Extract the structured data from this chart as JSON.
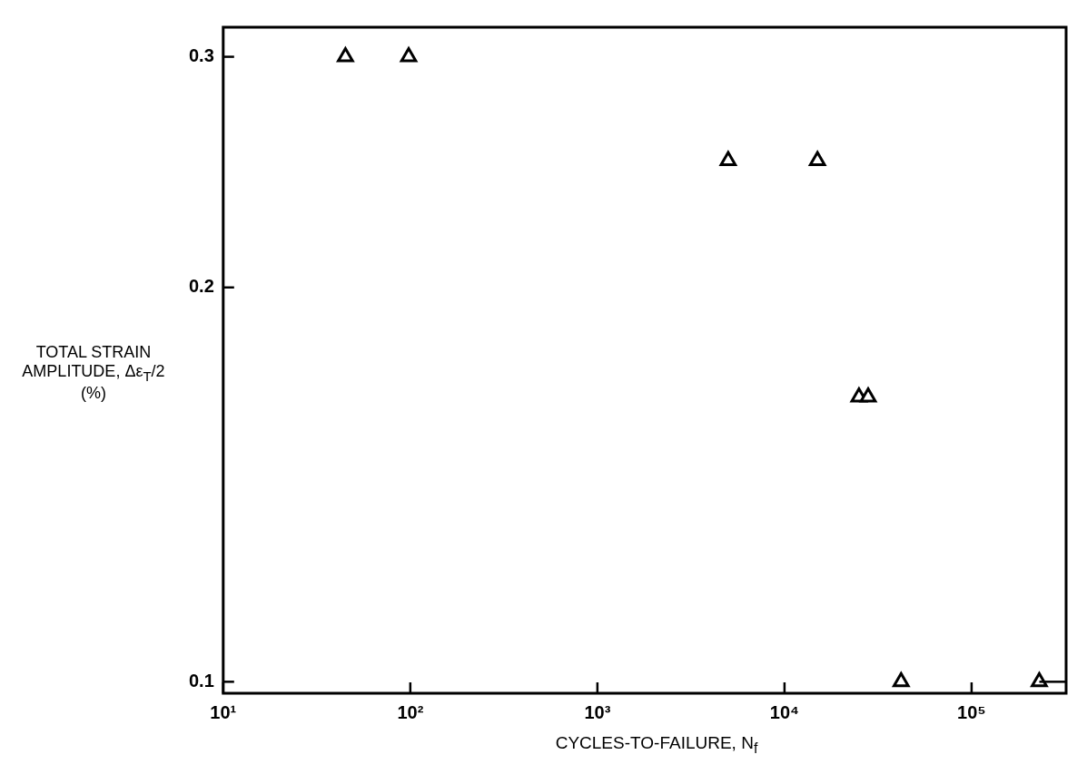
{
  "chart_data": {
    "type": "scatter",
    "xlabel": "CYCLES-TO-FAILURE, N$_{f}$",
    "ylabel": "TOTAL STRAIN AMPLITUDE, Δε$_{T}$/2 (%)",
    "log": "xy",
    "grid": false,
    "legend": false,
    "marker": "triangle",
    "xlim": [
      10,
      320000
    ],
    "ylim": [
      0.098,
      0.316
    ],
    "xticks": [
      {
        "value": 10,
        "label": "10¹"
      },
      {
        "value": 100,
        "label": "10²"
      },
      {
        "value": 1000,
        "label": "10³"
      },
      {
        "value": 10000,
        "label": "10⁴"
      },
      {
        "value": 100000,
        "label": "10⁵"
      }
    ],
    "yticks": [
      0.1,
      0.2,
      0.3
    ],
    "series": [
      {
        "color": "#000000",
        "x": [
          45,
          98,
          5000,
          15000,
          25000,
          28000,
          42000,
          230000
        ],
        "values": [
          0.3,
          0.3,
          0.25,
          0.25,
          0.165,
          0.165,
          0.1,
          0.1
        ],
        "xerrors": [
          null,
          null,
          null,
          null,
          null,
          null,
          null,
          [
            230000,
            320000
          ]
        ]
      }
    ]
  }
}
